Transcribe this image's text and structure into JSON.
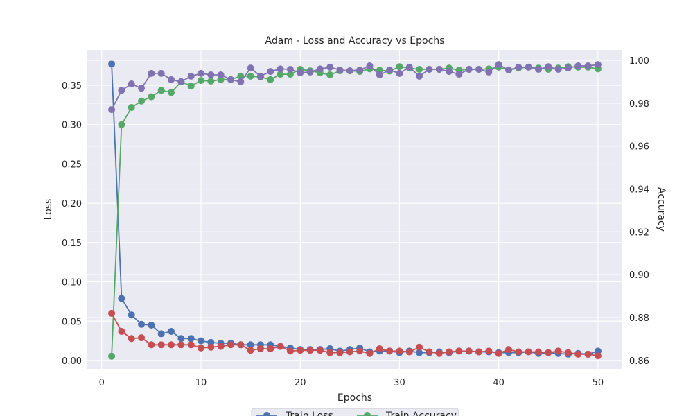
{
  "chart_data": {
    "type": "line",
    "title": "Adam - Loss and Accuracy vs Epochs",
    "x_label": "Epochs",
    "y_label": "Loss",
    "y2_label": "Accuracy",
    "x": [
      1,
      2,
      3,
      4,
      5,
      6,
      7,
      8,
      9,
      10,
      11,
      12,
      13,
      14,
      15,
      16,
      17,
      18,
      19,
      20,
      21,
      22,
      23,
      24,
      25,
      26,
      27,
      28,
      29,
      30,
      31,
      32,
      33,
      34,
      35,
      36,
      37,
      38,
      39,
      40,
      41,
      42,
      43,
      44,
      45,
      46,
      47,
      48,
      49,
      50
    ],
    "xlim": [
      -1.45,
      52.45
    ],
    "xticks": [
      0,
      10,
      20,
      30,
      40,
      50
    ],
    "ylim": [
      -0.0106,
      0.395
    ],
    "yticks": [
      {
        "value": 0,
        "label": "0.00"
      },
      0.05,
      {
        "value": 0.1,
        "label": "0.10"
      },
      0.15,
      {
        "value": 0.2,
        "label": "0.20"
      },
      0.25,
      {
        "value": 0.3,
        "label": "0.30"
      },
      0.35
    ],
    "y2lim": [
      0.8561,
      1.00485
    ],
    "y2ticks": [
      0.86,
      0.88,
      {
        "value": 0.9,
        "label": "0.90"
      },
      0.92,
      0.94,
      0.96,
      0.98,
      {
        "value": 1,
        "label": "1.00"
      }
    ],
    "grid": true,
    "legend": "lower center",
    "series": [
      {
        "name": "Train Loss",
        "color": "#4c72b0",
        "axis": "y",
        "values": [
          0.377,
          0.079,
          0.058,
          0.046,
          0.045,
          0.034,
          0.037,
          0.028,
          0.028,
          0.025,
          0.023,
          0.022,
          0.022,
          0.02,
          0.02,
          0.02,
          0.02,
          0.018,
          0.016,
          0.014,
          0.014,
          0.014,
          0.015,
          0.012,
          0.014,
          0.016,
          0.011,
          0.012,
          0.012,
          0.01,
          0.012,
          0.01,
          0.01,
          0.011,
          0.01,
          0.012,
          0.012,
          0.011,
          0.011,
          0.01,
          0.01,
          0.01,
          0.011,
          0.009,
          0.01,
          0.009,
          0.008,
          0.009,
          0.008,
          0.012
        ]
      },
      {
        "name": "Train Accuracy",
        "color": "#55a868",
        "axis": "y2",
        "values": [
          0.862,
          0.97,
          0.978,
          0.981,
          0.983,
          0.986,
          0.985,
          0.99,
          0.988,
          0.9906,
          0.9903,
          0.991,
          0.991,
          0.9926,
          0.9926,
          0.9922,
          0.991,
          0.9935,
          0.9935,
          0.9958,
          0.9951,
          0.9942,
          0.9932,
          0.9951,
          0.9951,
          0.9948,
          0.996,
          0.9954,
          0.995,
          0.997,
          0.9964,
          0.9958,
          0.9958,
          0.9958,
          0.9964,
          0.9954,
          0.9958,
          0.9958,
          0.996,
          0.9968,
          0.9955,
          0.9964,
          0.9968,
          0.9964,
          0.9958,
          0.9964,
          0.997,
          0.9968,
          0.9968,
          0.996
        ]
      },
      {
        "color": "#c44e52",
        "axis": "y",
        "values": [
          0.06,
          0.037,
          0.028,
          0.029,
          0.02,
          0.02,
          0.02,
          0.02,
          0.02,
          0.016,
          0.017,
          0.018,
          0.02,
          0.02,
          0.013,
          0.015,
          0.015,
          0.018,
          0.012,
          0.013,
          0.013,
          0.013,
          0.01,
          0.01,
          0.011,
          0.012,
          0.009,
          0.015,
          0.012,
          0.012,
          0.011,
          0.017,
          0.011,
          0.009,
          0.011,
          0.012,
          0.012,
          0.011,
          0.012,
          0.009,
          0.014,
          0.011,
          0.011,
          0.011,
          0.01,
          0.012,
          0.01,
          0.008,
          0.008,
          0.006
        ]
      },
      {
        "color": "#8172b2",
        "axis": "y2",
        "values": [
          0.977,
          0.986,
          0.989,
          0.987,
          0.9939,
          0.9939,
          0.991,
          0.99,
          0.9926,
          0.9939,
          0.9932,
          0.9932,
          0.991,
          0.99,
          0.9964,
          0.9926,
          0.9948,
          0.996,
          0.9958,
          0.9942,
          0.9945,
          0.996,
          0.9968,
          0.9955,
          0.9951,
          0.9955,
          0.9974,
          0.9932,
          0.9955,
          0.9939,
          0.9968,
          0.9926,
          0.9958,
          0.9958,
          0.9948,
          0.9935,
          0.9958,
          0.9958,
          0.9945,
          0.998,
          0.9955,
          0.9968,
          0.9968,
          0.9958,
          0.997,
          0.9958,
          0.9964,
          0.9974,
          0.9974,
          0.998
        ]
      }
    ]
  }
}
